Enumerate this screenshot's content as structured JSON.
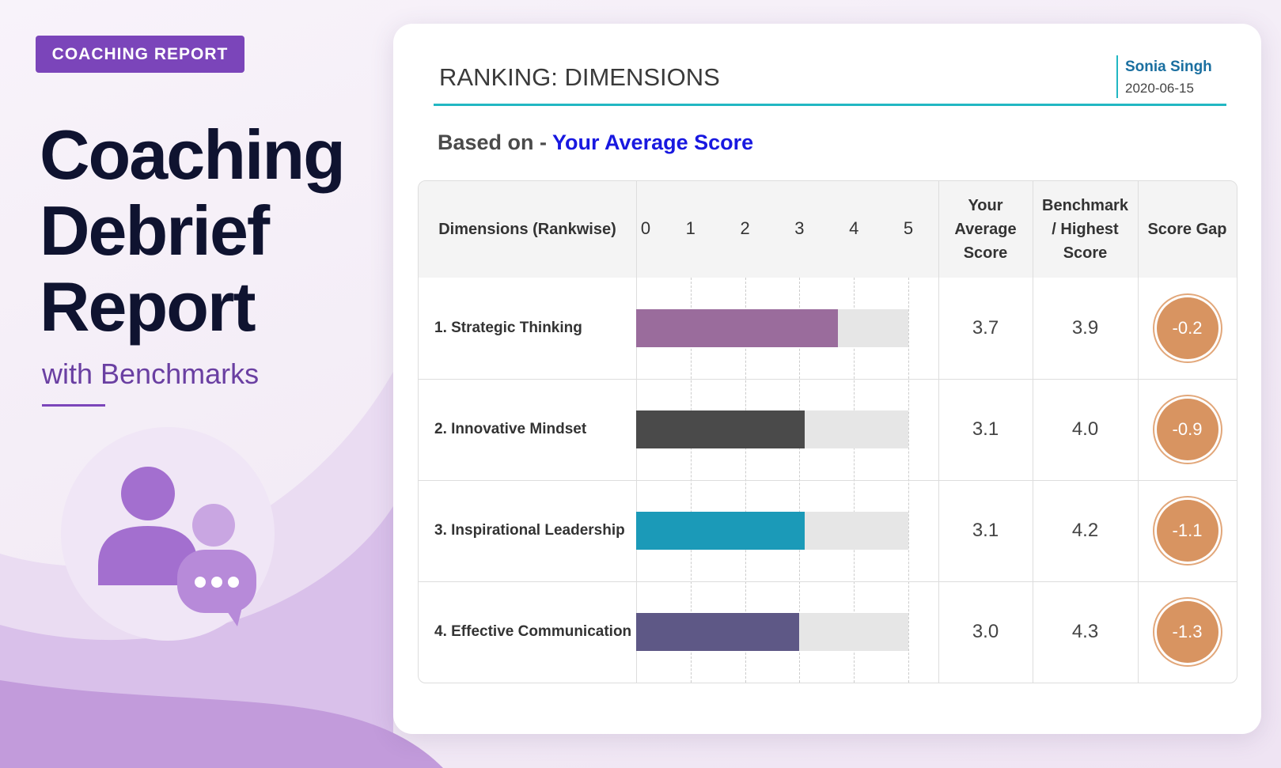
{
  "header": {
    "badge": "COACHING REPORT",
    "title_lines": [
      "Coaching",
      "Debrief",
      "Report"
    ],
    "subtitle": "with Benchmarks"
  },
  "report": {
    "title": "RANKING: DIMENSIONS",
    "name": "Sonia Singh",
    "date": "2020-06-15",
    "basis_label": "Based on -",
    "basis_value": "Your Average Score"
  },
  "table": {
    "columns": [
      "Dimensions (Rankwise)",
      "Your Average Score",
      "Benchmark / Highest Score",
      "Score Gap"
    ],
    "scale": {
      "lim": [
        0,
        5
      ],
      "ticks": [
        0,
        1,
        2,
        3,
        4,
        5
      ]
    },
    "rows": [
      {
        "dimension": "1. Strategic Thinking",
        "score": {
          "value": 3.7,
          "label": "3.7"
        },
        "benchmark": "3.9",
        "gap": "-0.2",
        "color": "#9a6c9c"
      },
      {
        "dimension": "2. Innovative Mindset",
        "score": {
          "value": 3.1,
          "label": "3.1"
        },
        "benchmark": "4.0",
        "gap": "-0.9",
        "color": "#4a4a4a"
      },
      {
        "dimension": "3. Inspirational Leadership",
        "score": {
          "value": 3.1,
          "label": "3.1"
        },
        "benchmark": "4.2",
        "gap": "-1.1",
        "color": "#1b9ab8"
      },
      {
        "dimension": "4. Effective Communication",
        "score": {
          "value": 3.0,
          "label": "3.0"
        },
        "benchmark": "4.3",
        "gap": "-1.3",
        "color": "#5e5886"
      }
    ]
  }
}
